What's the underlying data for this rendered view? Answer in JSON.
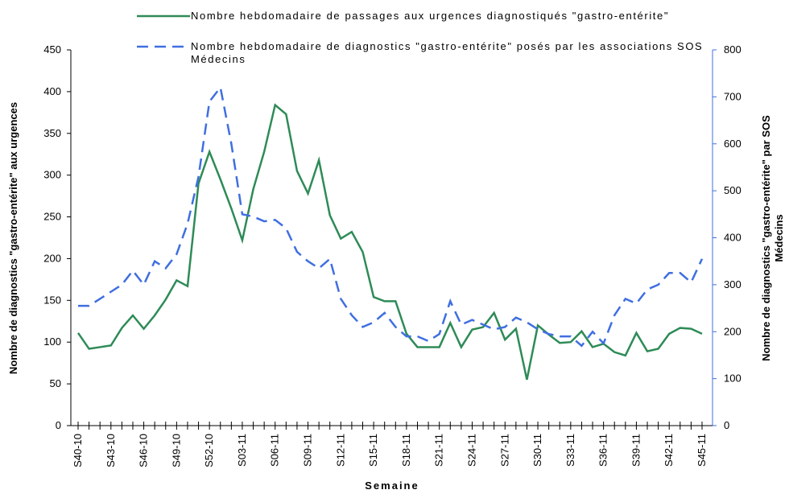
{
  "chart_data": {
    "type": "line",
    "x_label": "Semaine",
    "y_label": "Nombre de diagnostics \"gastro-entérite\" aux urgences",
    "y2_label": [
      "Nombre de diagnostics \"gastro-entérite\" par SOS",
      "Médecins"
    ],
    "categories": [
      "S40-10",
      null,
      null,
      "S43-10",
      null,
      null,
      "S46-10",
      null,
      null,
      "S49-10",
      null,
      null,
      "S52-10",
      null,
      null,
      "S03-11",
      null,
      null,
      "S06-11",
      null,
      null,
      "S09-11",
      null,
      null,
      "S12-11",
      null,
      null,
      "S15-11",
      null,
      null,
      "S18-11",
      null,
      null,
      "S21-11",
      null,
      null,
      "S24-11",
      null,
      null,
      "S27-11",
      null,
      null,
      "S30-11",
      null,
      null,
      "S33-11",
      null,
      null,
      "S36-11",
      null,
      null,
      "S39-11",
      null,
      null,
      "S42-11",
      null,
      null,
      "S45-11"
    ],
    "series": [
      {
        "name": "Nombre hebdomadaire de passages aux urgences diagnostiqués \"gastro-entérite\"",
        "color": "#2e8b57",
        "dash": false,
        "values": [
          111,
          92,
          94,
          96,
          117,
          132,
          116,
          132,
          151,
          174,
          167,
          290,
          328,
          295,
          260,
          222,
          283,
          328,
          384,
          373,
          305,
          278,
          318,
          252,
          224,
          232,
          208,
          154,
          149,
          149,
          110,
          94,
          94,
          94,
          123,
          94,
          115,
          118,
          135,
          103,
          116,
          55,
          120,
          109,
          99,
          100,
          113,
          94,
          98,
          88,
          84,
          111,
          89,
          92,
          110,
          117,
          116,
          110
        ]
      },
      {
        "name": "Nombre hebdomadaire de diagnostics \"gastro-entérite\" posés par les associations SOS Médecins",
        "color": "#3f6fe0",
        "dash": true,
        "axis": "y2",
        "values": [
          255,
          255,
          270,
          285,
          300,
          330,
          300,
          350,
          335,
          365,
          430,
          530,
          690,
          720,
          600,
          450,
          445,
          435,
          438,
          420,
          370,
          350,
          335,
          355,
          270,
          235,
          210,
          220,
          240,
          210,
          190,
          190,
          180,
          195,
          265,
          215,
          225,
          215,
          205,
          210,
          230,
          220,
          205,
          195,
          190,
          190,
          170,
          200,
          175,
          235,
          270,
          260,
          290,
          300,
          325,
          325,
          305,
          355
        ]
      }
    ],
    "ylim": [
      0,
      450
    ],
    "yticks": [
      0,
      50,
      100,
      150,
      200,
      250,
      300,
      350,
      400,
      450
    ],
    "y2lim": [
      0,
      800
    ],
    "y2ticks": [
      0,
      100,
      200,
      300,
      400,
      500,
      600,
      700,
      800
    ]
  }
}
